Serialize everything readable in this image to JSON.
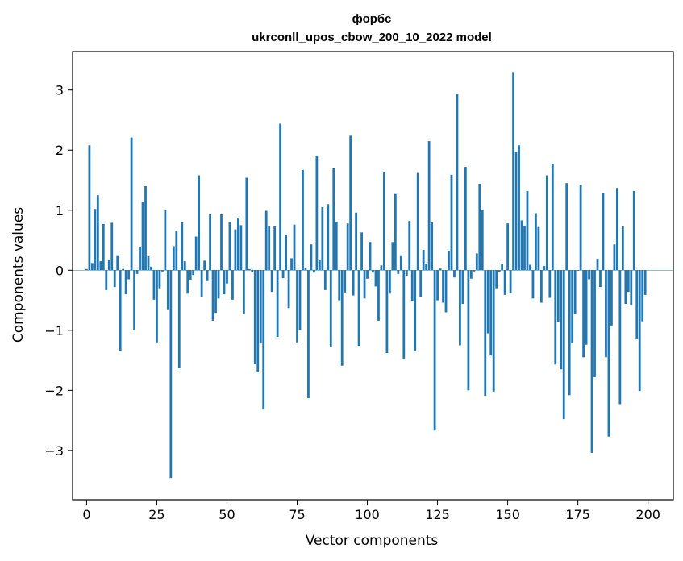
{
  "chart_data": {
    "type": "bar",
    "title": "форбс",
    "subtitle": "ukrconll_upos_cbow_200_10_2022 model",
    "xlabel": "Vector components",
    "ylabel": "Components values",
    "xlim": [
      -5,
      209
    ],
    "ylim": [
      -3.82,
      3.64
    ],
    "xticks": [
      0,
      25,
      50,
      75,
      100,
      125,
      150,
      175,
      200
    ],
    "yticks": [
      -3,
      -2,
      -1,
      0,
      1,
      2,
      3
    ],
    "xtick_labels": [
      "0",
      "25",
      "50",
      "75",
      "100",
      "125",
      "150",
      "175",
      "200"
    ],
    "ytick_labels": [
      "−3",
      "−2",
      "−1",
      "0",
      "1",
      "2",
      "3"
    ],
    "grid": false,
    "bar_color": "#1f77b4",
    "x": [
      0,
      1,
      2,
      3,
      4,
      5,
      6,
      7,
      8,
      9,
      10,
      11,
      12,
      13,
      14,
      15,
      16,
      17,
      18,
      19,
      20,
      21,
      22,
      23,
      24,
      25,
      26,
      27,
      28,
      29,
      30,
      31,
      32,
      33,
      34,
      35,
      36,
      37,
      38,
      39,
      40,
      41,
      42,
      43,
      44,
      45,
      46,
      47,
      48,
      49,
      50,
      51,
      52,
      53,
      54,
      55,
      56,
      57,
      58,
      59,
      60,
      61,
      62,
      63,
      64,
      65,
      66,
      67,
      68,
      69,
      70,
      71,
      72,
      73,
      74,
      75,
      76,
      77,
      78,
      79,
      80,
      81,
      82,
      83,
      84,
      85,
      86,
      87,
      88,
      89,
      90,
      91,
      92,
      93,
      94,
      95,
      96,
      97,
      98,
      99,
      100,
      101,
      102,
      103,
      104,
      105,
      106,
      107,
      108,
      109,
      110,
      111,
      112,
      113,
      114,
      115,
      116,
      117,
      118,
      119,
      120,
      121,
      122,
      123,
      124,
      125,
      126,
      127,
      128,
      129,
      130,
      131,
      132,
      133,
      134,
      135,
      136,
      137,
      138,
      139,
      140,
      141,
      142,
      143,
      144,
      145,
      146,
      147,
      148,
      149,
      150,
      151,
      152,
      153,
      154,
      155,
      156,
      157,
      158,
      159,
      160,
      161,
      162,
      163,
      164,
      165,
      166,
      167,
      168,
      169,
      170,
      171,
      172,
      173,
      174,
      175,
      176,
      177,
      178,
      179,
      180,
      181,
      182,
      183,
      184,
      185,
      186,
      187,
      188,
      189,
      190,
      191,
      192,
      193,
      194,
      195,
      196,
      197,
      198,
      199
    ],
    "values": [
      0.02,
      2.08,
      0.12,
      1.02,
      1.25,
      0.15,
      0.77,
      -0.33,
      0.17,
      0.79,
      -0.28,
      0.25,
      -1.34,
      0.02,
      -0.4,
      -0.15,
      2.21,
      -1.0,
      -0.06,
      0.39,
      1.14,
      1.4,
      0.23,
      0.06,
      -0.49,
      -1.2,
      -0.3,
      -0.02,
      1.0,
      -0.65,
      -3.46,
      0.4,
      0.65,
      -1.63,
      0.8,
      0.15,
      -0.39,
      -0.17,
      -0.08,
      0.56,
      1.58,
      -0.44,
      0.16,
      -0.18,
      0.93,
      -0.84,
      -0.71,
      -0.47,
      0.93,
      -0.4,
      -0.22,
      0.8,
      -0.49,
      0.68,
      0.86,
      0.75,
      -0.72,
      1.54,
      0.02,
      -0.03,
      -1.56,
      -1.7,
      -1.22,
      -2.32,
      0.99,
      0.73,
      -0.36,
      0.73,
      -1.11,
      2.44,
      -0.13,
      0.59,
      -0.63,
      0.2,
      0.76,
      -1.2,
      -0.99,
      1.67,
      0.03,
      -2.13,
      0.43,
      -0.04,
      1.91,
      0.17,
      1.05,
      -0.33,
      1.1,
      -1.27,
      1.7,
      0.81,
      -0.5,
      -1.59,
      -0.37,
      0.78,
      2.24,
      -0.42,
      0.96,
      -1.26,
      0.63,
      -0.47,
      -0.14,
      0.47,
      -0.04,
      -0.27,
      -0.84,
      0.08,
      1.63,
      -1.38,
      -0.39,
      0.47,
      1.27,
      -0.06,
      0.25,
      -1.47,
      -0.09,
      0.82,
      -0.51,
      -1.35,
      1.62,
      -0.44,
      0.34,
      0.11,
      2.15,
      0.8,
      -2.67,
      -0.5,
      0.03,
      -0.54,
      -0.7,
      0.32,
      1.59,
      -0.12,
      2.94,
      -1.25,
      -0.56,
      1.72,
      -2.0,
      -0.14,
      -0.02,
      0.28,
      1.44,
      1.01,
      -2.09,
      -1.05,
      -1.42,
      -2.02,
      -0.3,
      -0.03,
      0.11,
      -0.41,
      0.78,
      -0.38,
      3.3,
      1.97,
      2.08,
      0.83,
      0.74,
      1.32,
      0.09,
      -0.47,
      0.95,
      0.72,
      -0.54,
      0.07,
      1.58,
      -0.46,
      1.77,
      -1.57,
      -0.86,
      -1.65,
      -2.48,
      1.45,
      -2.08,
      -1.21,
      -0.73,
      -0.01,
      1.42,
      -1.45,
      -1.24,
      -0.15,
      -3.04,
      -1.78,
      0.19,
      -0.28,
      1.28,
      -1.45,
      -2.77,
      -0.92,
      0.43,
      1.37,
      -2.23,
      0.73,
      -0.56,
      -0.36,
      -0.58,
      1.32,
      -1.15,
      -2.01,
      -0.85,
      -0.41
    ]
  }
}
